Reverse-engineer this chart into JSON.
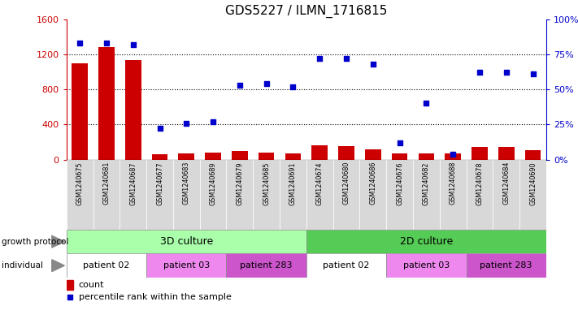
{
  "title": "GDS5227 / ILMN_1716815",
  "samples": [
    "GSM1240675",
    "GSM1240681",
    "GSM1240687",
    "GSM1240677",
    "GSM1240683",
    "GSM1240689",
    "GSM1240679",
    "GSM1240685",
    "GSM1240691",
    "GSM1240674",
    "GSM1240680",
    "GSM1240686",
    "GSM1240676",
    "GSM1240682",
    "GSM1240688",
    "GSM1240678",
    "GSM1240684",
    "GSM1240690"
  ],
  "counts": [
    1100,
    1280,
    1130,
    60,
    70,
    80,
    100,
    80,
    70,
    160,
    155,
    120,
    65,
    70,
    70,
    145,
    145,
    110
  ],
  "percentiles": [
    83,
    83,
    82,
    22,
    26,
    27,
    53,
    54,
    52,
    72,
    72,
    68,
    12,
    40,
    4,
    62,
    62,
    61
  ],
  "ylim_left": [
    0,
    1600
  ],
  "ylim_right": [
    0,
    100
  ],
  "yticks_left": [
    0,
    400,
    800,
    1200,
    1600
  ],
  "yticks_right": [
    0,
    25,
    50,
    75,
    100
  ],
  "bar_color": "#cc0000",
  "dot_color": "#0000cc",
  "growth_3d_color": "#aaffaa",
  "growth_2d_color": "#55cc55",
  "patient_colors_list": [
    "#ffffff",
    "#ee88ee",
    "#cc55cc"
  ],
  "patient_labels": [
    "patient 02",
    "patient 03",
    "patient 283"
  ],
  "patient_groups_3d": [
    {
      "label": "patient 02",
      "start": 0,
      "end": 2
    },
    {
      "label": "patient 03",
      "start": 3,
      "end": 5
    },
    {
      "label": "patient 283",
      "start": 6,
      "end": 8
    }
  ],
  "patient_groups_2d": [
    {
      "label": "patient 02",
      "start": 9,
      "end": 11
    },
    {
      "label": "patient 03",
      "start": 12,
      "end": 14
    },
    {
      "label": "patient 283",
      "start": 15,
      "end": 17
    }
  ],
  "growth_protocol_3d": "3D culture",
  "growth_protocol_2d": "2D culture",
  "count_label": "count",
  "percentile_label": "percentile rank within the sample",
  "legend_count_color": "#cc0000",
  "legend_dot_color": "#0000cc",
  "label_fontsize": 8,
  "tick_fontsize": 6.5,
  "title_fontsize": 11
}
